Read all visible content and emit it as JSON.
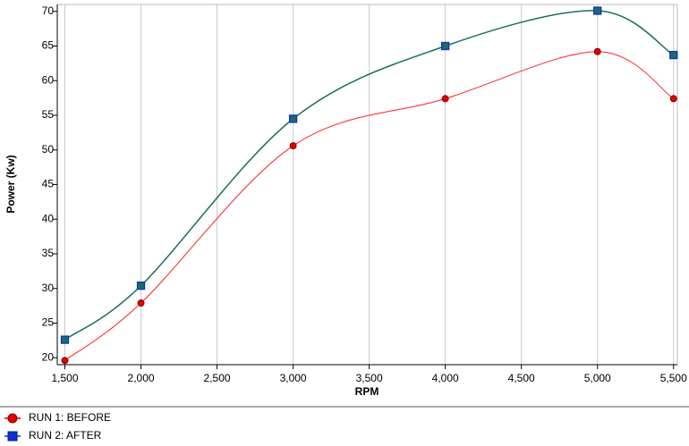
{
  "chart_data": {
    "type": "line",
    "x_label": "RPM",
    "y_label": "Power (Kw)",
    "x": [
      1500,
      2000,
      3000,
      4000,
      5000,
      5500
    ],
    "series": [
      {
        "name": "RUN 1: BEFORE",
        "color": "#ff2020",
        "marker_color": "#e00000",
        "marker": "circle",
        "values": [
          19.6,
          27.9,
          50.6,
          57.4,
          64.2,
          57.4
        ]
      },
      {
        "name": "RUN 2: AFTER",
        "color": "#1b6e5c",
        "marker_color": "#1030d0",
        "marker": "square",
        "values": [
          22.6,
          30.4,
          54.5,
          65.0,
          70.1,
          63.7
        ]
      }
    ],
    "xlim": [
      1450,
      5525
    ],
    "ylim": [
      19,
      71
    ],
    "xticks": [
      {
        "value": 1500,
        "label": "1,500"
      },
      {
        "value": 2000,
        "label": "2,000"
      },
      {
        "value": 2500,
        "label": "2,500"
      },
      {
        "value": 3000,
        "label": "3,000"
      },
      {
        "value": 3500,
        "label": "3,500"
      },
      {
        "value": 4000,
        "label": "4,000"
      },
      {
        "value": 4500,
        "label": "4,500"
      },
      {
        "value": 5000,
        "label": "5,000"
      },
      {
        "value": 5500,
        "label": "5,500"
      }
    ],
    "yticks": [
      20,
      25,
      30,
      35,
      40,
      45,
      50,
      55,
      60,
      65,
      70
    ],
    "grid": "x",
    "legend": "bottom-left"
  }
}
